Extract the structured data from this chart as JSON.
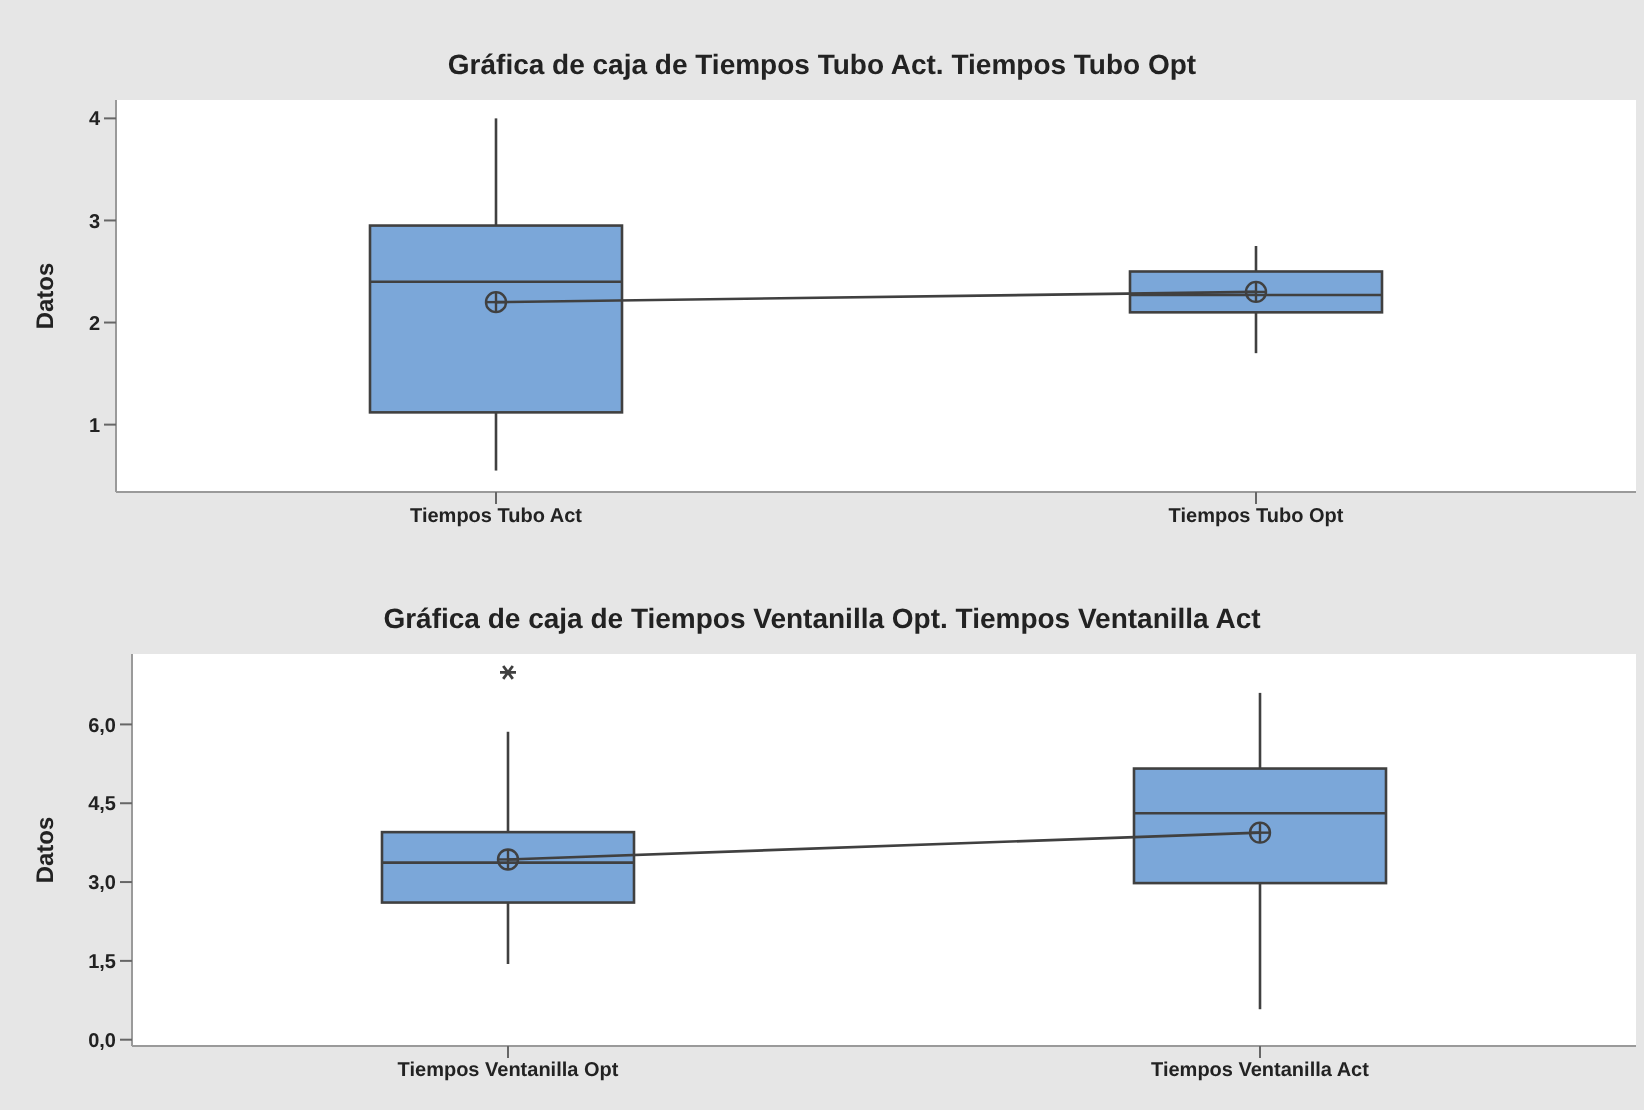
{
  "chart_data": [
    {
      "type": "box",
      "title": "Gráfica de caja de Tiempos Tubo Act. Tiempos Tubo Opt",
      "ylabel": "Datos",
      "categories": [
        "Tiempos Tubo Act",
        "Tiempos Tubo Opt"
      ],
      "color": "#7ba7d9",
      "ylim": [
        0.34,
        4.18
      ],
      "yticks": [
        1,
        2,
        3,
        4
      ],
      "boxes": [
        {
          "low": 0.55,
          "q1": 1.12,
          "median": 2.4,
          "q3": 2.95,
          "high": 4.0,
          "mean": 2.2
        },
        {
          "low": 1.7,
          "q1": 2.1,
          "median": 2.27,
          "q3": 2.5,
          "high": 2.75,
          "mean": 2.3
        }
      ],
      "series": [
        {
          "type": "line",
          "color": "#404040",
          "values": [
            2.2,
            2.3
          ],
          "marker": "none"
        }
      ]
    },
    {
      "type": "box",
      "title": "Gráfica de caja de Tiempos Ventanilla Opt. Tiempos Ventanilla Act",
      "ylabel": "Datos",
      "categories": [
        "Tiempos Ventanilla Opt",
        "Tiempos Ventanilla Act"
      ],
      "color": "#7ba7d9",
      "ylim": [
        -0.12,
        7.34
      ],
      "yticks": [
        {
          "value": 0,
          "label": "0,0"
        },
        {
          "value": 1.5,
          "label": "1,5"
        },
        {
          "value": 3,
          "label": "3,0"
        },
        {
          "value": 4.5,
          "label": "4,5"
        },
        {
          "value": 6,
          "label": "6,0"
        }
      ],
      "boxes": [
        {
          "low": 1.44,
          "q1": 2.61,
          "median": 3.37,
          "q3": 3.95,
          "high": 5.86,
          "mean": 3.43,
          "outliers": [
            6.99
          ]
        },
        {
          "low": 0.58,
          "q1": 2.98,
          "median": 4.31,
          "q3": 5.16,
          "high": 6.6,
          "mean": 3.94
        }
      ],
      "series": [
        {
          "type": "line",
          "color": "#404040",
          "values": [
            3.43,
            3.94
          ],
          "marker": "none"
        }
      ]
    }
  ]
}
